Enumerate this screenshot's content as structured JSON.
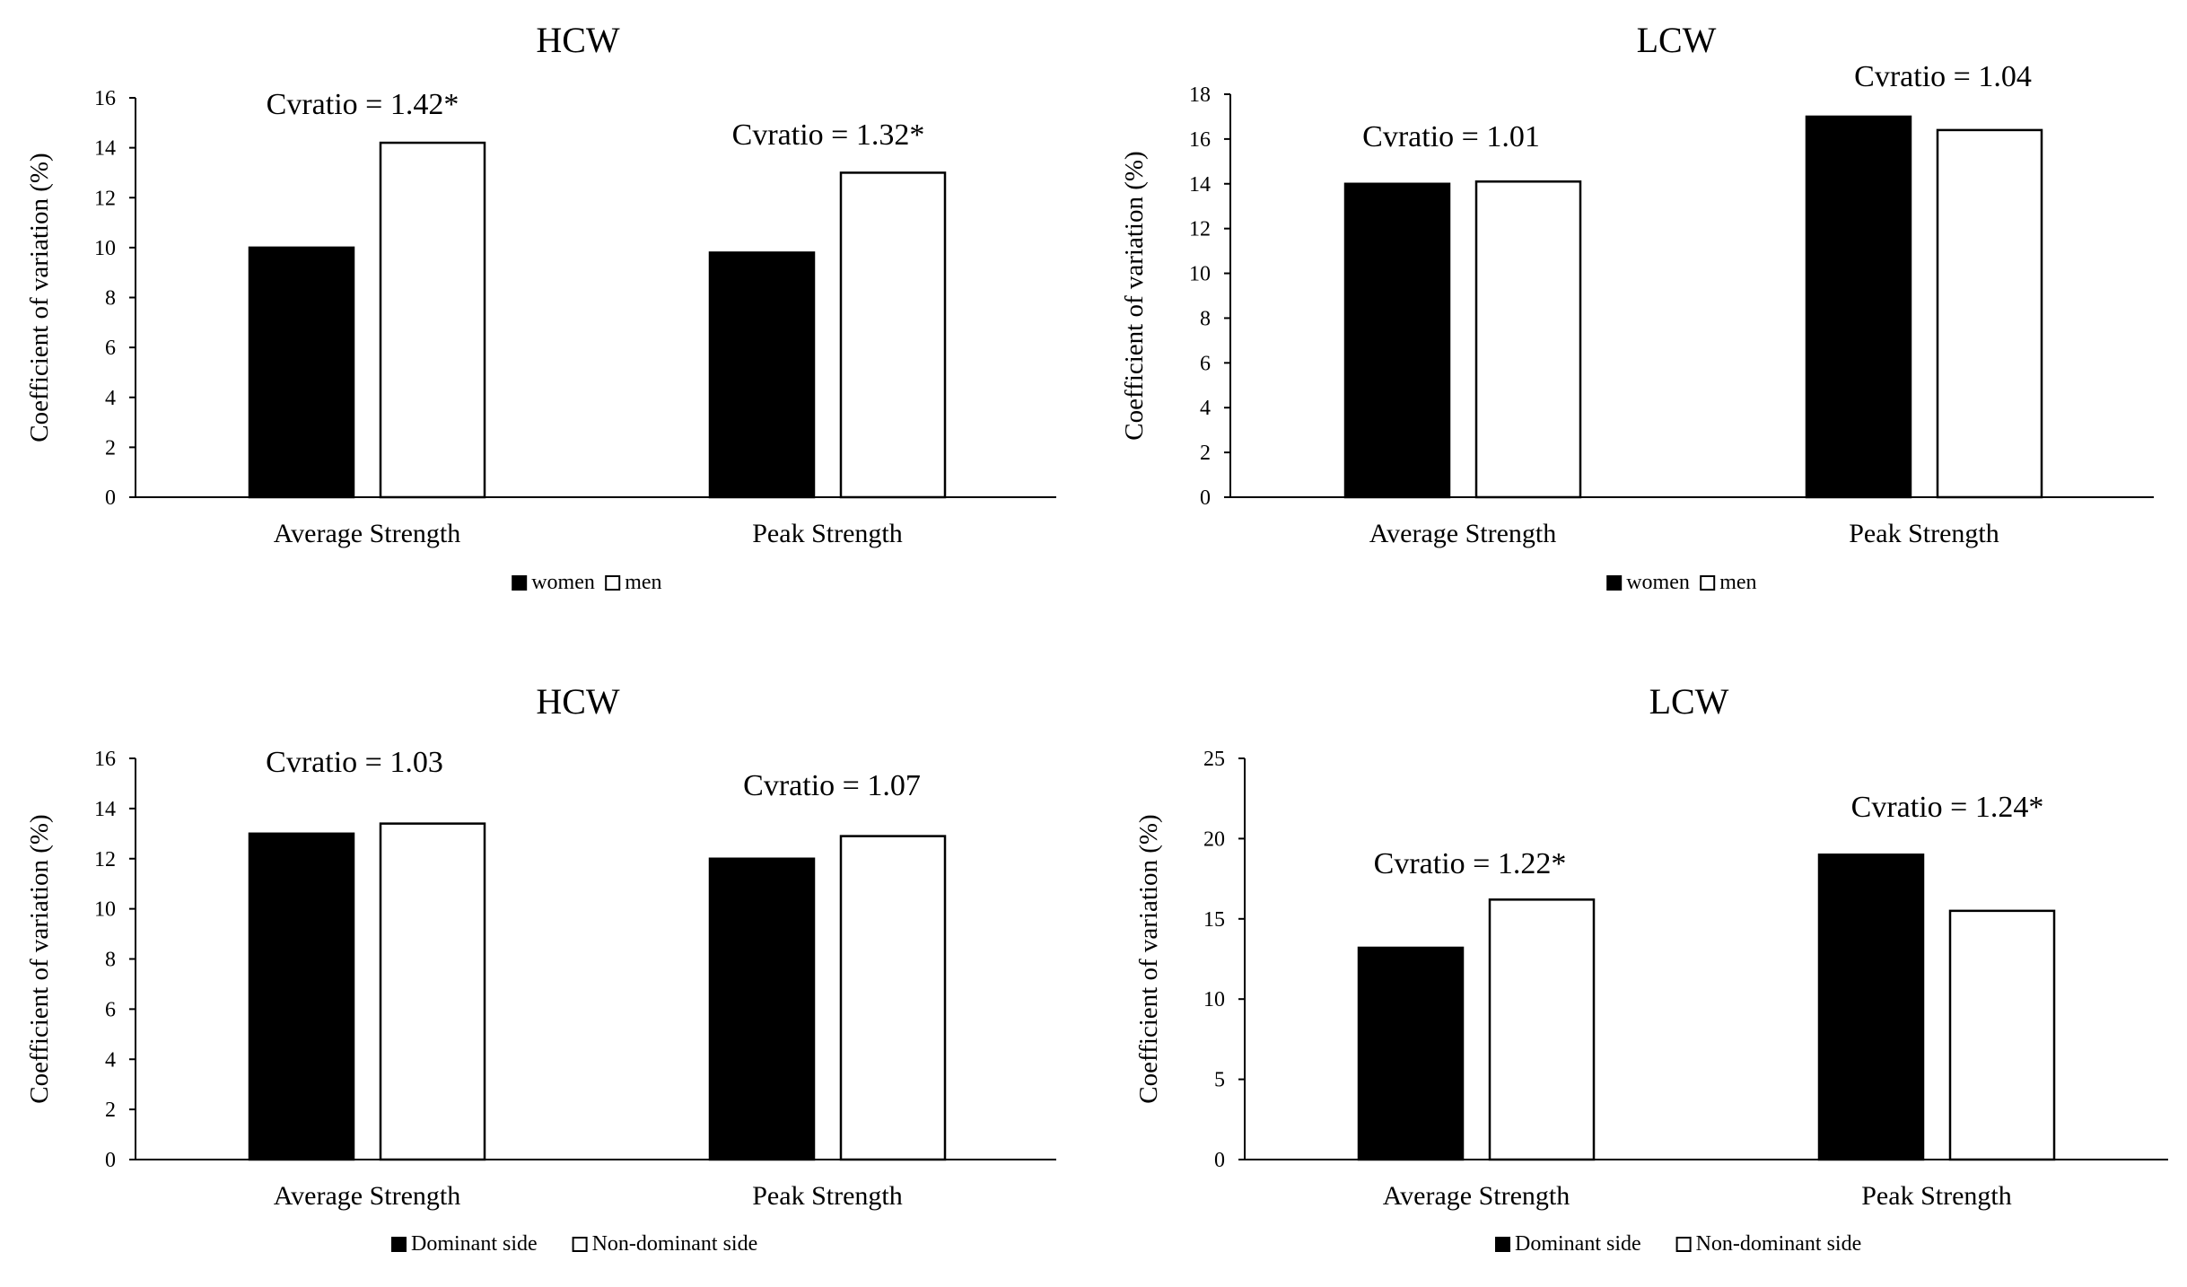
{
  "colors": {
    "series1": "#000000",
    "series2": "#ffffff",
    "stroke": "#000000",
    "axis": "#000000"
  },
  "chart_data": [
    {
      "type": "bar",
      "title": "HCW",
      "ylabel": "Coefficient of variation (%)",
      "xlabel": "",
      "categories": [
        "Average Strength",
        "Peak Strength"
      ],
      "series": [
        {
          "name": "women",
          "values": [
            10.0,
            9.8
          ]
        },
        {
          "name": "men",
          "values": [
            14.2,
            13.0
          ]
        }
      ],
      "ylim": [
        0,
        16
      ],
      "yticks": [
        "0",
        "2",
        "4",
        "6",
        "8",
        "10",
        "12",
        "14",
        "16"
      ],
      "annotations": [
        "Cvratio = 1.42*",
        "Cvratio = 1.32*"
      ],
      "legend": [
        "women",
        "men"
      ],
      "legend_position": "bottom-center"
    },
    {
      "type": "bar",
      "title": "LCW",
      "ylabel": "Coefficient of variation (%)",
      "xlabel": "",
      "categories": [
        "Average Strength",
        "Peak Strength"
      ],
      "series": [
        {
          "name": "women",
          "values": [
            14.0,
            17.0
          ]
        },
        {
          "name": "men",
          "values": [
            14.1,
            16.4
          ]
        }
      ],
      "ylim": [
        0,
        18
      ],
      "yticks": [
        "0",
        "2",
        "4",
        "6",
        "8",
        "10",
        "12",
        "14",
        "16",
        "18"
      ],
      "annotations": [
        "Cvratio = 1.01",
        "Cvratio = 1.04"
      ],
      "legend": [
        "women",
        "men"
      ],
      "legend_position": "bottom-center"
    },
    {
      "type": "bar",
      "title": "HCW",
      "ylabel": "Coefficient of variation (%)",
      "xlabel": "",
      "categories": [
        "Average Strength",
        "Peak Strength"
      ],
      "series": [
        {
          "name": "Dominant side",
          "values": [
            13.0,
            12.0
          ]
        },
        {
          "name": "Non-dominant side",
          "values": [
            13.4,
            12.9
          ]
        }
      ],
      "ylim": [
        0,
        16
      ],
      "yticks": [
        "0",
        "2",
        "4",
        "6",
        "8",
        "10",
        "12",
        "14",
        "16"
      ],
      "annotations": [
        "Cvratio = 1.03",
        "Cvratio = 1.07"
      ],
      "legend": [
        "Dominant side",
        "Non-dominant side"
      ],
      "legend_position": "bottom-center"
    },
    {
      "type": "bar",
      "title": "LCW",
      "ylabel": "Coefficient of variation (%)",
      "xlabel": "",
      "categories": [
        "Average Strength",
        "Peak Strength"
      ],
      "series": [
        {
          "name": "Dominant side",
          "values": [
            13.2,
            19.0
          ]
        },
        {
          "name": "Non-dominant side",
          "values": [
            16.2,
            15.5
          ]
        }
      ],
      "ylim": [
        0,
        25
      ],
      "yticks": [
        "0",
        "5",
        "10",
        "15",
        "20",
        "25"
      ],
      "annotations": [
        "Cvratio = 1.22*",
        "Cvratio = 1.24*"
      ],
      "legend": [
        "Dominant side",
        "Non-dominant side"
      ],
      "legend_position": "bottom-center"
    }
  ]
}
